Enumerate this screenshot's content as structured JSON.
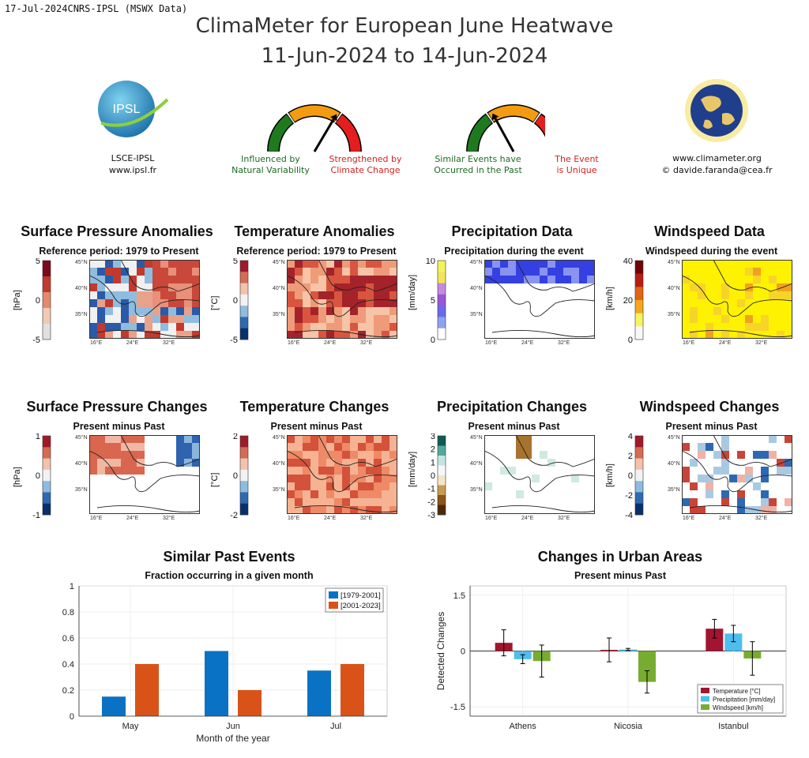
{
  "header": {
    "stamp": "17-Jul-2024CNRS-IPSL (MSWX Data)",
    "title": "ClimaMeter for European June Heatwave",
    "dates": "11-Jun-2024 to 14-Jun-2024"
  },
  "logos": {
    "left_name": "IPSL",
    "left_line1": "LSCE-IPSL",
    "left_line2": "www.ipsl.fr",
    "right_line1": "www.climameter.org",
    "right_line2": "© davide.faranda@cea.fr"
  },
  "gauges": [
    {
      "left_label_1": "Influenced by",
      "left_label_2": "Natural Variability",
      "right_label_1": "Strengthened by",
      "right_label_2": "Climate Change"
    },
    {
      "left_label_1": "Similar Events have",
      "left_label_2": "Occurred in the Past",
      "right_label_1": "The Event",
      "right_label_2": "is Unique"
    }
  ],
  "gauge_colors": {
    "green": "#1f7a1f",
    "orange": "#f39c12",
    "red": "#e41e1e"
  },
  "maps_row1": [
    {
      "title": "Surface Pressure Anomalies",
      "subtitle": "Reference period: 1979 to Present",
      "unit": "[hPa]",
      "ticks": [
        "5",
        "0",
        "-5"
      ]
    },
    {
      "title": "Temperature Anomalies",
      "subtitle": "Reference period: 1979 to Present",
      "unit": "[°C]",
      "ticks": [
        "5",
        "0",
        "-5"
      ]
    },
    {
      "title": "Precipitation Data",
      "subtitle": "Precipitation during the event",
      "unit": "[mm/day]",
      "ticks": [
        "10",
        "5",
        "0"
      ]
    },
    {
      "title": "Windspeed Data",
      "subtitle": "Windspeed during the event",
      "unit": "[km/h]",
      "ticks": [
        "40",
        "20",
        "0"
      ]
    }
  ],
  "maps_row2": [
    {
      "title": "Surface Pressure Changes",
      "subtitle": "Present minus Past",
      "unit": "[hPa]",
      "ticks": [
        "1",
        "0",
        "-1"
      ]
    },
    {
      "title": "Temperature Changes",
      "subtitle": "Present minus Past",
      "unit": "[°C]",
      "ticks": [
        "2",
        "0",
        "-2"
      ]
    },
    {
      "title": "Precipitation Changes",
      "subtitle": "Present minus Past",
      "unit": "[mm/day]",
      "ticks": [
        "3",
        "2",
        "1",
        "0",
        "-1",
        "-2",
        "-3"
      ]
    },
    {
      "title": "Windspeed Changes",
      "subtitle": "Present minus Past",
      "unit": "[km/h]",
      "ticks": [
        "4",
        "2",
        "0",
        "-2",
        "-4"
      ]
    }
  ],
  "map_axes": {
    "lats": [
      "45°N",
      "40°N",
      "35°N"
    ],
    "lons": [
      "16°E",
      "24°E",
      "32°E"
    ]
  },
  "chart_data": [
    {
      "type": "bar",
      "title": "Similar Past Events",
      "subtitle": "Fraction occurring in a given month",
      "xlabel": "Month of the year",
      "ylabel": "",
      "categories": [
        "May",
        "Jun",
        "Jul"
      ],
      "ylim": [
        0,
        1
      ],
      "yticks": [
        0,
        0.2,
        0.4,
        0.6,
        0.8,
        1
      ],
      "series": [
        {
          "name": "[1979-2001]",
          "color": "#0a72c4",
          "values": [
            0.15,
            0.5,
            0.35
          ]
        },
        {
          "name": "[2001-2023]",
          "color": "#d95319",
          "values": [
            0.4,
            0.2,
            0.4
          ]
        }
      ],
      "legend": "top-right",
      "grid": true
    },
    {
      "type": "bar",
      "title": "Changes in Urban Areas",
      "subtitle": "Present minus Past",
      "xlabel": "",
      "ylabel": "Detected Changes",
      "categories": [
        "Athens",
        "Nicosia",
        "Istanbul"
      ],
      "ylim": [
        -1.75,
        1.75
      ],
      "yticks": [
        -1.5,
        0,
        1.5
      ],
      "ytick_labels": [
        "-1.5",
        "0",
        "1.5"
      ],
      "series": [
        {
          "name": "Temperature [°C]",
          "color": "#a2142f",
          "values": [
            0.22,
            0.03,
            0.6
          ],
          "errors": [
            0.35,
            0.32,
            0.25
          ]
        },
        {
          "name": "Precipitation [mm/day]",
          "color": "#4dbeee",
          "values": [
            -0.22,
            0.04,
            0.47
          ],
          "errors": [
            0.12,
            0.03,
            0.22
          ]
        },
        {
          "name": "Windspeed [km/h]",
          "color": "#77ac30",
          "values": [
            -0.27,
            -0.83,
            -0.2
          ],
          "errors": [
            0.43,
            0.3,
            0.45
          ]
        }
      ],
      "legend": "bottom-right",
      "grid": true
    }
  ]
}
